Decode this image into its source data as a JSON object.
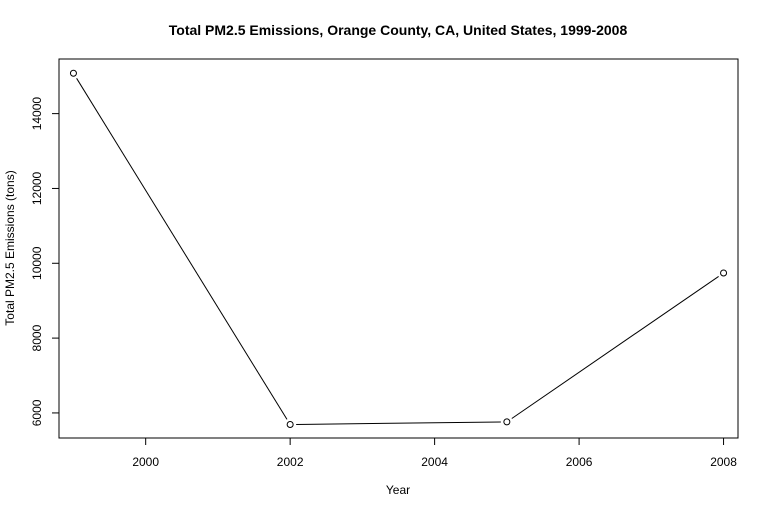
{
  "chart_data": {
    "type": "line",
    "title": "Total PM2.5 Emissions, Orange County, CA, United States, 1999-2008",
    "xlabel": "Year",
    "ylabel": "Total PM2.5 Emissions (tons)",
    "x": [
      1999,
      2002,
      2005,
      2008
    ],
    "series": [
      {
        "values": [
          15080,
          5690,
          5760,
          9740
        ]
      }
    ],
    "xlim": [
      1998.8,
      2008.2
    ],
    "ylim": [
      5330,
      15460
    ],
    "xticks": [
      2000,
      2002,
      2004,
      2006,
      2008
    ],
    "yticks": [
      6000,
      8000,
      10000,
      12000,
      14000
    ],
    "grid": false,
    "markers": "open-circle"
  }
}
